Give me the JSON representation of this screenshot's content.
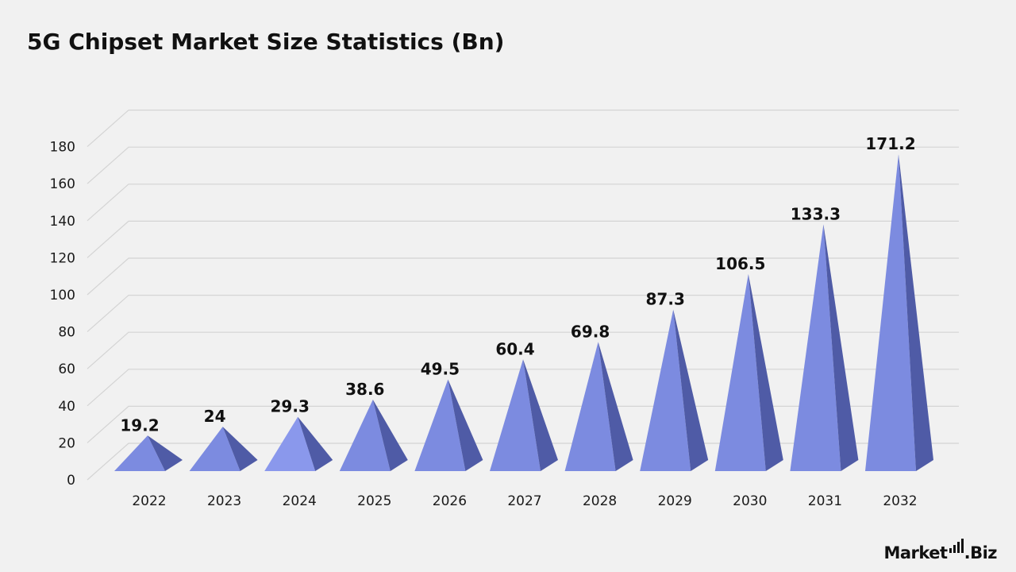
{
  "chart_data": {
    "type": "bar",
    "title": "5G Chipset Market Size Statistics (Bn)",
    "categories": [
      "2022",
      "2023",
      "2024",
      "2025",
      "2026",
      "2027",
      "2028",
      "2029",
      "2030",
      "2031",
      "2032"
    ],
    "values": [
      19.2,
      24,
      29.3,
      38.6,
      49.5,
      60.4,
      69.8,
      87.3,
      106.5,
      133.3,
      171.2
    ],
    "value_labels": [
      "19.2",
      "24",
      "29.3",
      "38.6",
      "49.5",
      "60.4",
      "69.8",
      "87.3",
      "106.5",
      "133.3",
      "171.2"
    ],
    "ylim": [
      0,
      180
    ],
    "yticks": [
      0,
      20,
      40,
      60,
      80,
      100,
      120,
      140,
      160,
      180
    ],
    "xlabel": "",
    "ylabel": "",
    "grid": true,
    "bar_shape": "3d-pyramid",
    "colors": {
      "front_face": "#7c8be0",
      "front_face_light": "#8a98ec",
      "side_face": "#4f5ba6",
      "gridline": "#d4d4d4",
      "background": "#f1f1f1"
    }
  },
  "brand": {
    "logo_text_left": "Market",
    "logo_text_right": ".Biz"
  }
}
